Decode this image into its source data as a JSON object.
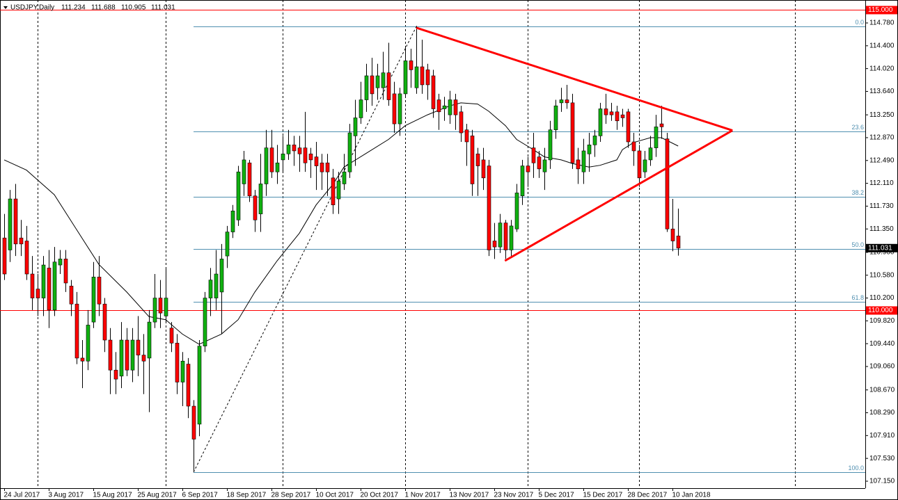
{
  "chart_data": {
    "type": "candlestick",
    "symbol": "USDJPY,Daily",
    "bull_color": "#10b010",
    "bear_color": "#ff0000",
    "ylim": [
      107.034,
      115.162
    ],
    "xlim": [
      -0.75,
      154.6
    ],
    "yticks": [
      {
        "value": 114.78,
        "label": "114.780"
      },
      {
        "value": 114.4,
        "label": "114.400"
      },
      {
        "value": 114.02,
        "label": "114.020"
      },
      {
        "value": 113.64,
        "label": "113.640"
      },
      {
        "value": 113.25,
        "label": "113.250"
      },
      {
        "value": 112.87,
        "label": "112.870"
      },
      {
        "value": 112.49,
        "label": "112.490"
      },
      {
        "value": 112.11,
        "label": "112.110"
      },
      {
        "value": 111.73,
        "label": "111.730"
      },
      {
        "value": 111.35,
        "label": "111.350"
      },
      {
        "value": 110.96,
        "label": "110.960"
      },
      {
        "value": 110.58,
        "label": "110.580"
      },
      {
        "value": 110.2,
        "label": "110.200"
      },
      {
        "value": 109.82,
        "label": "109.820"
      },
      {
        "value": 109.44,
        "label": "109.440"
      },
      {
        "value": 109.06,
        "label": "109.060"
      },
      {
        "value": 108.67,
        "label": "108.670"
      },
      {
        "value": 108.29,
        "label": "108.290"
      },
      {
        "value": 107.91,
        "label": "107.910"
      },
      {
        "value": 107.53,
        "label": "107.530"
      },
      {
        "value": 107.15,
        "label": "107.150"
      }
    ],
    "xticks": [
      {
        "value": 0,
        "label": "24 Jul 2017"
      },
      {
        "value": 8,
        "label": "3 Aug 2017"
      },
      {
        "value": 16,
        "label": "15 Aug 2017"
      },
      {
        "value": 24,
        "label": "25 Aug 2017"
      },
      {
        "value": 32,
        "label": "6 Sep 2017"
      },
      {
        "value": 40,
        "label": "18 Sep 2017"
      },
      {
        "value": 48,
        "label": "28 Sep 2017"
      },
      {
        "value": 56,
        "label": "10 Oct 2017"
      },
      {
        "value": 64,
        "label": "20 Oct 2017"
      },
      {
        "value": 72,
        "label": "1 Nov 2017"
      },
      {
        "value": 80,
        "label": "13 Nov 2017"
      },
      {
        "value": 88,
        "label": "23 Nov 2017"
      },
      {
        "value": 96,
        "label": "5 Dec 2017"
      },
      {
        "value": 104,
        "label": "15 Dec 2017"
      },
      {
        "value": 112,
        "label": "28 Dec 2017"
      },
      {
        "value": 120,
        "label": "10 Jan 2018"
      }
    ],
    "separators": [
      6,
      29,
      50,
      72,
      94,
      114,
      142
    ],
    "hlines": [
      {
        "value": 115,
        "label": "115.000",
        "color": "#ff0000"
      },
      {
        "value": 110,
        "label": "110.000",
        "color": "#ff0000"
      }
    ],
    "current_price": {
      "value": 111.031,
      "label": "111.031"
    },
    "fib_color": "#4f8fb0",
    "fib_levels": [
      {
        "level": "0.0",
        "price": 114.72
      },
      {
        "level": "23.6",
        "price": 112.97
      },
      {
        "level": "38.2",
        "price": 111.89
      },
      {
        "level": "50.0",
        "price": 111.02
      },
      {
        "level": "61.8",
        "price": 110.14
      },
      {
        "level": "100.0",
        "price": 107.3
      }
    ],
    "fib_anchor": {
      "x": [
        34,
        74
      ],
      "y": [
        107.3,
        114.72
      ]
    },
    "trendlines": {
      "color": "#ff0000",
      "lines": [
        {
          "x": [
            74,
            130.75
          ],
          "y": [
            114.7,
            112.99
          ]
        },
        {
          "x": [
            89.9,
            130.75
          ],
          "y": [
            110.82,
            112.99
          ]
        }
      ]
    },
    "ma": {
      "color": "#000000",
      "x": [
        0,
        4,
        9,
        13,
        17,
        22,
        26,
        29,
        32,
        35,
        39,
        42,
        45,
        49,
        53,
        56,
        59,
        61,
        65,
        69,
        72,
        76,
        80,
        82,
        85,
        87,
        90,
        92,
        95,
        97,
        100,
        102,
        105,
        107,
        110,
        111,
        113,
        116,
        118,
        121
      ],
      "values": [
        112.5,
        112.33,
        111.92,
        111.34,
        110.76,
        110.3,
        109.89,
        109.84,
        109.6,
        109.43,
        109.6,
        109.84,
        110.3,
        110.82,
        111.28,
        111.75,
        112.09,
        112.38,
        112.61,
        112.84,
        113.07,
        113.25,
        113.4,
        113.45,
        113.43,
        113.31,
        113.07,
        112.84,
        112.67,
        112.55,
        112.5,
        112.44,
        112.38,
        112.41,
        112.5,
        112.67,
        112.79,
        112.87,
        112.87,
        112.73
      ]
    },
    "candles": [
      [
        111.2,
        111.6,
        110.5,
        110.6
      ],
      [
        111.0,
        112.0,
        110.8,
        111.85
      ],
      [
        111.85,
        112.1,
        110.9,
        111.1
      ],
      [
        111.2,
        111.5,
        110.9,
        111.1
      ],
      [
        111.15,
        111.4,
        110.5,
        110.6
      ],
      [
        110.6,
        110.9,
        110.0,
        110.2
      ],
      [
        110.35,
        110.6,
        109.9,
        110.2
      ],
      [
        110.2,
        110.9,
        109.9,
        110.75
      ],
      [
        110.7,
        111.0,
        109.7,
        110.0
      ],
      [
        110.0,
        111.05,
        109.9,
        110.8
      ],
      [
        110.75,
        111.0,
        110.6,
        110.85
      ],
      [
        110.85,
        111.0,
        110.3,
        110.45
      ],
      [
        110.4,
        110.5,
        109.9,
        110.1
      ],
      [
        110.1,
        110.3,
        109.1,
        109.2
      ],
      [
        109.2,
        109.5,
        108.7,
        109.15
      ],
      [
        109.15,
        110.0,
        109.0,
        109.75
      ],
      [
        109.8,
        110.8,
        109.7,
        110.55
      ],
      [
        110.55,
        110.9,
        109.9,
        110.1
      ],
      [
        110.1,
        110.2,
        109.3,
        109.5
      ],
      [
        109.5,
        109.7,
        108.6,
        109.0
      ],
      [
        109.0,
        109.3,
        108.6,
        108.85
      ],
      [
        108.9,
        109.8,
        108.7,
        109.5
      ],
      [
        109.5,
        109.7,
        108.9,
        109.0
      ],
      [
        109.0,
        109.7,
        108.8,
        109.5
      ],
      [
        109.5,
        109.9,
        108.9,
        109.25
      ],
      [
        109.25,
        109.6,
        108.6,
        109.15
      ],
      [
        109.2,
        110.0,
        108.3,
        109.8
      ],
      [
        109.8,
        110.6,
        109.7,
        110.2
      ],
      [
        110.2,
        110.5,
        109.7,
        109.95
      ],
      [
        109.9,
        110.7,
        109.8,
        110.2
      ],
      [
        109.7,
        109.8,
        109.3,
        109.45
      ],
      [
        109.45,
        109.6,
        108.6,
        108.8
      ],
      [
        108.8,
        109.3,
        108.4,
        109.15
      ],
      [
        109.1,
        109.2,
        108.2,
        108.4
      ],
      [
        108.4,
        108.5,
        107.32,
        107.85
      ],
      [
        108.1,
        109.5,
        107.9,
        109.4
      ],
      [
        109.4,
        110.3,
        109.3,
        110.2
      ],
      [
        110.2,
        110.7,
        109.9,
        110.5
      ],
      [
        110.2,
        111.0,
        110.0,
        110.6
      ],
      [
        110.3,
        111.1,
        109.6,
        110.85
      ],
      [
        110.9,
        111.4,
        110.7,
        111.3
      ],
      [
        111.3,
        111.75,
        111.2,
        111.65
      ],
      [
        111.5,
        112.4,
        111.4,
        112.3
      ],
      [
        112.1,
        112.65,
        111.9,
        112.5
      ],
      [
        112.45,
        112.5,
        111.8,
        111.9
      ],
      [
        111.9,
        112.0,
        111.3,
        111.5
      ],
      [
        111.6,
        112.6,
        111.3,
        112.1
      ],
      [
        112.1,
        113.0,
        111.9,
        112.7
      ],
      [
        112.7,
        113.0,
        112.2,
        112.3
      ],
      [
        112.3,
        112.75,
        112.1,
        112.45
      ],
      [
        112.5,
        112.9,
        112.3,
        112.6
      ],
      [
        112.6,
        113.0,
        112.5,
        112.75
      ],
      [
        112.75,
        112.9,
        112.4,
        112.65
      ],
      [
        112.7,
        112.9,
        112.3,
        112.6
      ],
      [
        112.7,
        113.3,
        112.3,
        112.45
      ],
      [
        112.6,
        112.7,
        112.2,
        112.5
      ],
      [
        112.55,
        112.8,
        112.0,
        112.4
      ],
      [
        112.45,
        112.6,
        112.0,
        112.3
      ],
      [
        112.45,
        112.6,
        111.9,
        112.3
      ],
      [
        112.2,
        112.35,
        111.6,
        111.75
      ],
      [
        111.85,
        112.3,
        111.6,
        112.15
      ],
      [
        112.1,
        112.6,
        112.0,
        112.3
      ],
      [
        112.3,
        113.1,
        112.2,
        112.95
      ],
      [
        112.9,
        113.5,
        112.4,
        113.2
      ],
      [
        113.2,
        113.8,
        113.1,
        113.5
      ],
      [
        113.5,
        114.1,
        113.3,
        113.9
      ],
      [
        113.9,
        114.2,
        113.4,
        113.6
      ],
      [
        113.7,
        114.1,
        113.5,
        113.9
      ],
      [
        113.7,
        114.3,
        113.5,
        113.95
      ],
      [
        113.95,
        114.45,
        113.4,
        113.5
      ],
      [
        113.6,
        113.8,
        112.95,
        113.1
      ],
      [
        113.1,
        113.7,
        112.9,
        113.6
      ],
      [
        113.6,
        114.4,
        113.55,
        114.15
      ],
      [
        114.15,
        114.35,
        113.7,
        114.0
      ],
      [
        113.7,
        114.73,
        113.6,
        114.05
      ],
      [
        114.05,
        114.5,
        113.6,
        113.75
      ],
      [
        114.0,
        114.1,
        113.5,
        113.75
      ],
      [
        113.9,
        114.0,
        113.2,
        113.35
      ],
      [
        113.5,
        113.6,
        113.0,
        113.3
      ],
      [
        113.35,
        113.55,
        113.15,
        113.4
      ],
      [
        113.25,
        113.65,
        113.1,
        113.5
      ],
      [
        113.5,
        113.6,
        113.0,
        113.25
      ],
      [
        113.3,
        113.4,
        112.8,
        112.95
      ],
      [
        113.0,
        113.1,
        112.4,
        112.8
      ],
      [
        112.9,
        113.0,
        111.9,
        112.1
      ],
      [
        112.6,
        112.7,
        111.9,
        112.4
      ],
      [
        112.5,
        112.7,
        112.0,
        112.2
      ],
      [
        112.4,
        112.5,
        110.9,
        111.0
      ],
      [
        111.15,
        111.45,
        110.85,
        111.05
      ],
      [
        111.05,
        111.6,
        110.95,
        111.45
      ],
      [
        111.45,
        111.5,
        110.85,
        111.0
      ],
      [
        111.0,
        111.5,
        110.9,
        111.4
      ],
      [
        111.35,
        112.1,
        111.3,
        111.95
      ],
      [
        111.9,
        112.5,
        111.75,
        112.4
      ],
      [
        112.4,
        112.55,
        112.05,
        112.3
      ],
      [
        112.7,
        112.95,
        112.2,
        112.45
      ],
      [
        112.55,
        112.65,
        112.2,
        112.35
      ],
      [
        112.3,
        112.7,
        112.0,
        112.5
      ],
      [
        112.5,
        113.15,
        112.35,
        113.0
      ],
      [
        113.0,
        113.5,
        112.85,
        113.4
      ],
      [
        113.45,
        113.7,
        113.3,
        113.5
      ],
      [
        113.5,
        113.75,
        113.35,
        113.45
      ],
      [
        113.45,
        113.6,
        112.35,
        112.45
      ],
      [
        112.5,
        112.7,
        112.1,
        112.35
      ],
      [
        112.3,
        112.85,
        112.1,
        112.65
      ],
      [
        112.6,
        112.95,
        112.3,
        112.75
      ],
      [
        112.75,
        113.0,
        112.55,
        112.9
      ],
      [
        112.9,
        113.45,
        112.8,
        113.35
      ],
      [
        113.35,
        113.6,
        113.1,
        113.25
      ],
      [
        113.3,
        113.45,
        113.15,
        113.25
      ],
      [
        113.3,
        113.4,
        113.0,
        113.15
      ],
      [
        113.25,
        113.35,
        113.05,
        113.2
      ],
      [
        113.3,
        113.35,
        112.7,
        112.8
      ],
      [
        112.8,
        112.95,
        112.4,
        112.65
      ],
      [
        112.65,
        112.75,
        112.05,
        112.2
      ],
      [
        112.3,
        112.65,
        112.2,
        112.5
      ],
      [
        112.5,
        112.9,
        112.4,
        112.7
      ],
      [
        112.7,
        113.25,
        112.55,
        113.05
      ],
      [
        113.1,
        113.4,
        112.85,
        113.05
      ],
      [
        112.85,
        112.95,
        111.3,
        111.35
      ],
      [
        111.35,
        111.85,
        110.98,
        111.15
      ],
      [
        111.234,
        111.688,
        110.905,
        111.031
      ]
    ]
  }
}
